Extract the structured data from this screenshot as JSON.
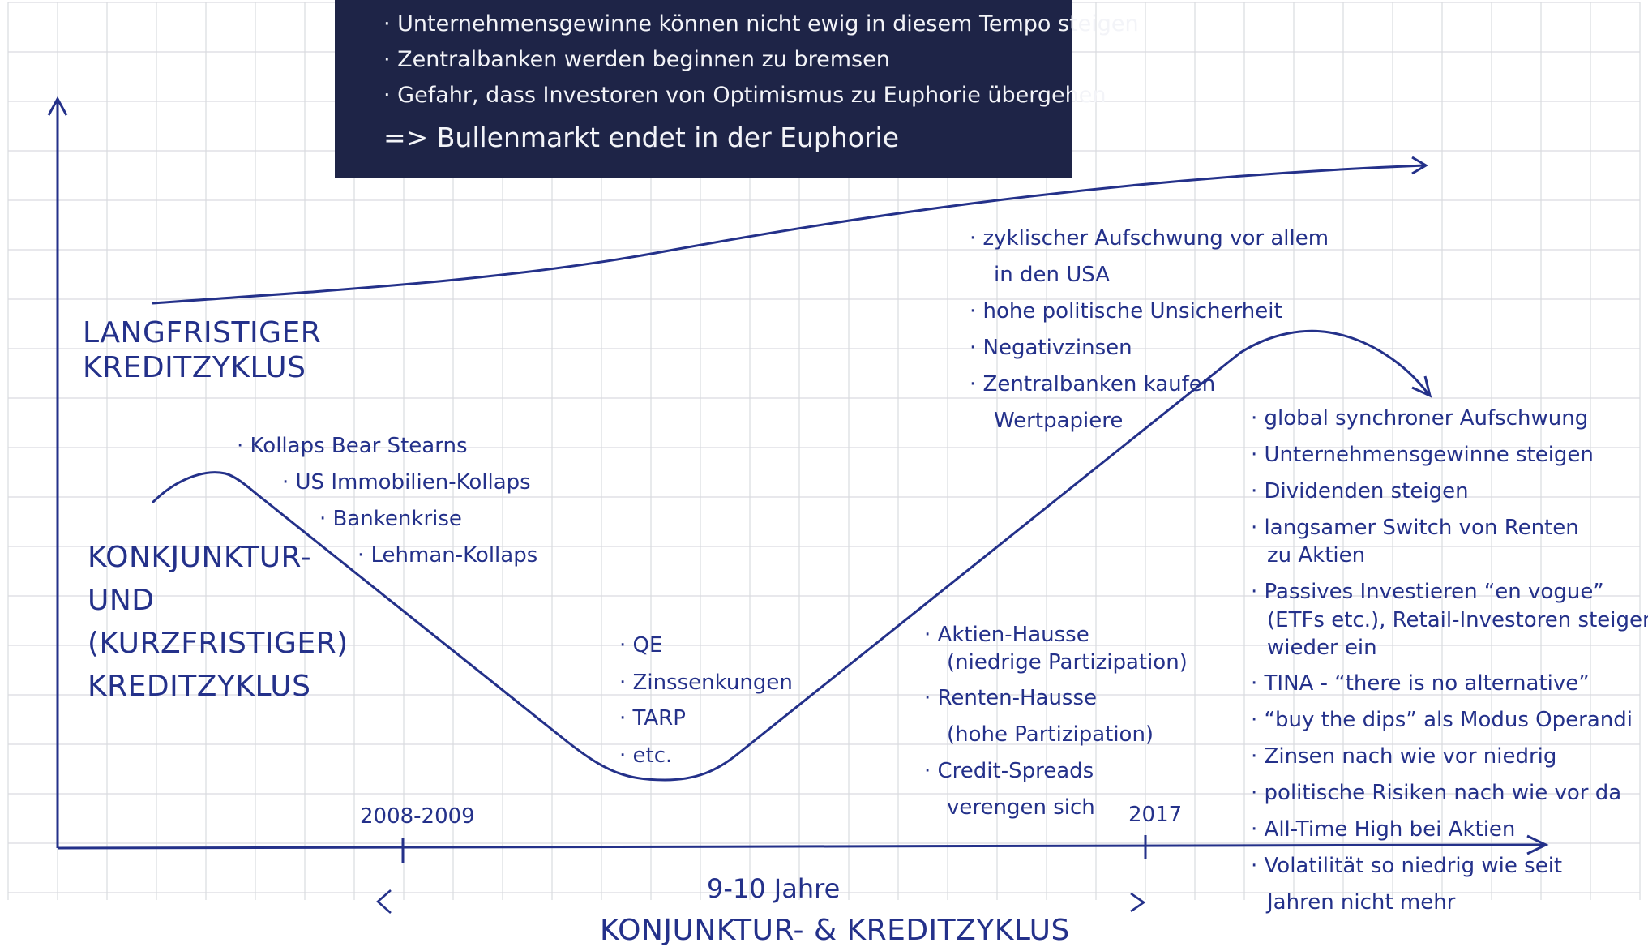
{
  "header_box": {
    "bullets": [
      "Unternehmensgewinne können nicht ewig in diesem Tempo steigen",
      "Zentralbanken werden beginnen zu bremsen",
      "Gefahr, dass Investoren von Optimismus zu Euphorie übergehen"
    ],
    "conclusion": "=> Bullenmarkt endet in der Euphorie"
  },
  "axis_labels": {
    "long_cycle_line1": "LANGFRISTIGER",
    "long_cycle_line2": "KREDITZYKLUS",
    "short_cycle_line1": "KONKJUNKTUR-",
    "short_cycle_line2": "UND",
    "short_cycle_line3": "(KURZFRISTIGER)",
    "short_cycle_line4": "KREDITZYKLUS",
    "tick_start": "2008-2009",
    "tick_end": "2017",
    "duration": "9-10 Jahre",
    "x_axis_title": "KONJUNKTUR- & KREDITZYKLUS"
  },
  "notes": {
    "crisis": [
      "Kollaps Bear Stearns",
      "US Immobilien-Kollaps",
      "Bankenkrise",
      "Lehman-Kollaps"
    ],
    "policy": [
      "QE",
      "Zinssenkungen",
      "TARP",
      "etc."
    ],
    "recovery": [
      "Aktien-Hausse",
      "(niedrige Partizipation)",
      "Renten-Hausse",
      "(hohe Partizipation)",
      "Credit-Spreads",
      "verengen sich"
    ],
    "upswing": [
      "zyklischer Aufschwung vor allem",
      "in den USA",
      "hohe politische Unsicherheit",
      "Negativzinsen",
      "Zentralbanken kaufen",
      "Wertpapiere"
    ],
    "peak": [
      "global synchroner Aufschwung",
      "Unternehmensgewinne steigen",
      "Dividenden steigen",
      "langsamer Switch von Renten",
      "zu Aktien",
      "Passives Investieren “en vogue”",
      "(ETFs etc.), Retail-Investoren steigen",
      "wieder ein",
      "TINA - “there is no alternative”",
      "“buy the dips” als Modus Operandi",
      "Zinsen nach wie vor niedrig",
      "politische Risiken nach wie vor da",
      "All-Time High bei Aktien",
      "Volatilität so niedrig wie seit",
      "Jahren nicht mehr"
    ]
  },
  "colors": {
    "ink": "#24318a",
    "box_bg": "#1e2447",
    "box_text": "#f3f4f8",
    "grid": "#d9dbe0"
  }
}
